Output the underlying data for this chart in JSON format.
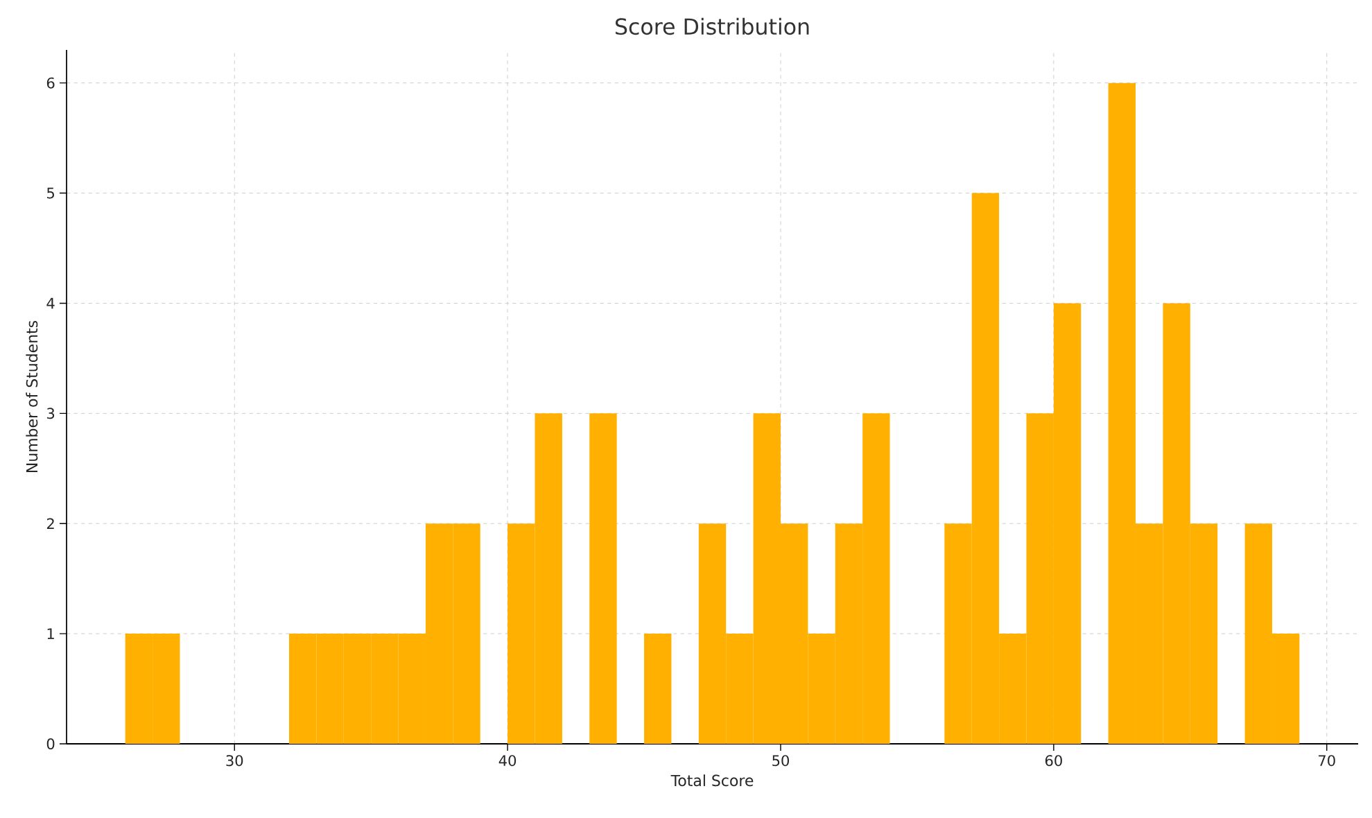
{
  "chart_data": {
    "type": "histogram",
    "title": "Score Distribution",
    "xlabel": "Total Score",
    "ylabel": "Number of Students",
    "bins": [
      26,
      27,
      28,
      29,
      30,
      31,
      32,
      33,
      34,
      35,
      36,
      37,
      38,
      39,
      40,
      41,
      42,
      43,
      44,
      45,
      46,
      47,
      48,
      49,
      50,
      51,
      52,
      53,
      54,
      55,
      56,
      57,
      58,
      59,
      60,
      61,
      62,
      63,
      64,
      65,
      66,
      67,
      68,
      69
    ],
    "values": [
      1,
      1,
      0,
      0,
      0,
      0,
      1,
      1,
      1,
      1,
      1,
      2,
      2,
      0,
      2,
      3,
      0,
      3,
      0,
      1,
      0,
      2,
      1,
      3,
      2,
      1,
      2,
      3,
      0,
      0,
      2,
      5,
      1,
      3,
      4,
      0,
      6,
      2,
      4,
      2,
      0,
      2,
      1
    ],
    "color": "#ffb000",
    "xlim": [
      23.85,
      71.15
    ],
    "ylim": [
      0,
      6.3
    ],
    "xticks": [
      30,
      40,
      50,
      60,
      70
    ],
    "yticks": [
      0,
      1,
      2,
      3,
      4,
      5,
      6
    ],
    "grid": true
  }
}
